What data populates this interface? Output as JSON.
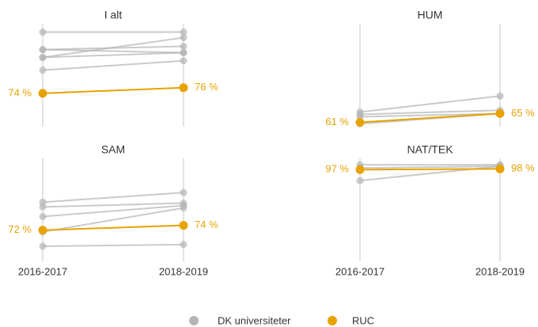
{
  "categories": [
    "2016-2017",
    "2018-2019"
  ],
  "legend": [
    {
      "name": "DK universiteter",
      "color": "#b5b5b5"
    },
    {
      "name": "RUC",
      "color": "#e8a202"
    }
  ],
  "chart_data": [
    {
      "type": "slope",
      "title": "I alt",
      "ylim": [
        62,
        99
      ],
      "others": [
        [
          96,
          96
        ],
        [
          89.7,
          88.6
        ],
        [
          89.7,
          90.9
        ],
        [
          86.9,
          88.6
        ],
        [
          82.3,
          85.7
        ],
        [
          86.9,
          94
        ]
      ],
      "ruc": {
        "values": [
          74,
          76
        ],
        "value_labels": [
          "74 %",
          "76 %"
        ]
      }
    },
    {
      "type": "slope",
      "title": "HUM",
      "ylim": [
        59,
        106
      ],
      "others": [
        [
          65.7,
          73
        ],
        [
          64.6,
          66.5
        ],
        [
          63.5,
          65
        ],
        [
          60.3,
          65
        ]
      ],
      "ruc": {
        "values": [
          61,
          65
        ],
        "value_labels": [
          "61 %",
          "65 %"
        ]
      }
    },
    {
      "type": "slope",
      "title": "SAM",
      "ylim": [
        59,
        102
      ],
      "others": [
        [
          83.7,
          87.7
        ],
        [
          81.7,
          83.3
        ],
        [
          77.7,
          82.3
        ],
        [
          71.3,
          81.3
        ],
        [
          65.3,
          66
        ]
      ],
      "ruc": {
        "values": [
          72,
          74
        ],
        "value_labels": [
          "72 %",
          "74 %"
        ]
      }
    },
    {
      "type": "slope",
      "title": "NAT/TEK",
      "ylim": [
        59,
        102
      ],
      "others": [
        [
          99.3,
          99.3
        ],
        [
          98,
          98.7
        ],
        [
          92.7,
          98.7
        ]
      ],
      "ruc": {
        "values": [
          97.3,
          97.6
        ],
        "value_labels": [
          "97 %",
          "98 %"
        ]
      }
    }
  ]
}
